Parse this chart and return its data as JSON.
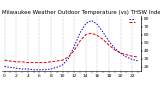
{
  "title": "Milwaukee Weather Outdoor Temperature (vs) THSW Index per Hour (Last 24 Hours)",
  "red_values": [
    28,
    27,
    26,
    26,
    25,
    25,
    25,
    25,
    26,
    27,
    28,
    32,
    40,
    52,
    60,
    62,
    59,
    54,
    47,
    41,
    37,
    35,
    33,
    32
  ],
  "blue_values": [
    20,
    19,
    18,
    17,
    17,
    16,
    16,
    16,
    17,
    19,
    22,
    30,
    45,
    62,
    74,
    78,
    73,
    63,
    52,
    43,
    37,
    32,
    29,
    27
  ],
  "red_color": "#dd0000",
  "blue_color": "#0000dd",
  "background_color": "#ffffff",
  "grid_color": "#888888",
  "ylim": [
    14,
    84
  ],
  "xlim": [
    0,
    23
  ],
  "ytick_right": [
    20,
    30,
    40,
    50,
    60,
    70,
    80
  ],
  "title_fontsize": 4.0,
  "tick_fontsize": 3.2,
  "line_width": 0.7,
  "red_dash": [
    3,
    1.5
  ],
  "blue_dash": [
    1.5,
    1.5
  ]
}
